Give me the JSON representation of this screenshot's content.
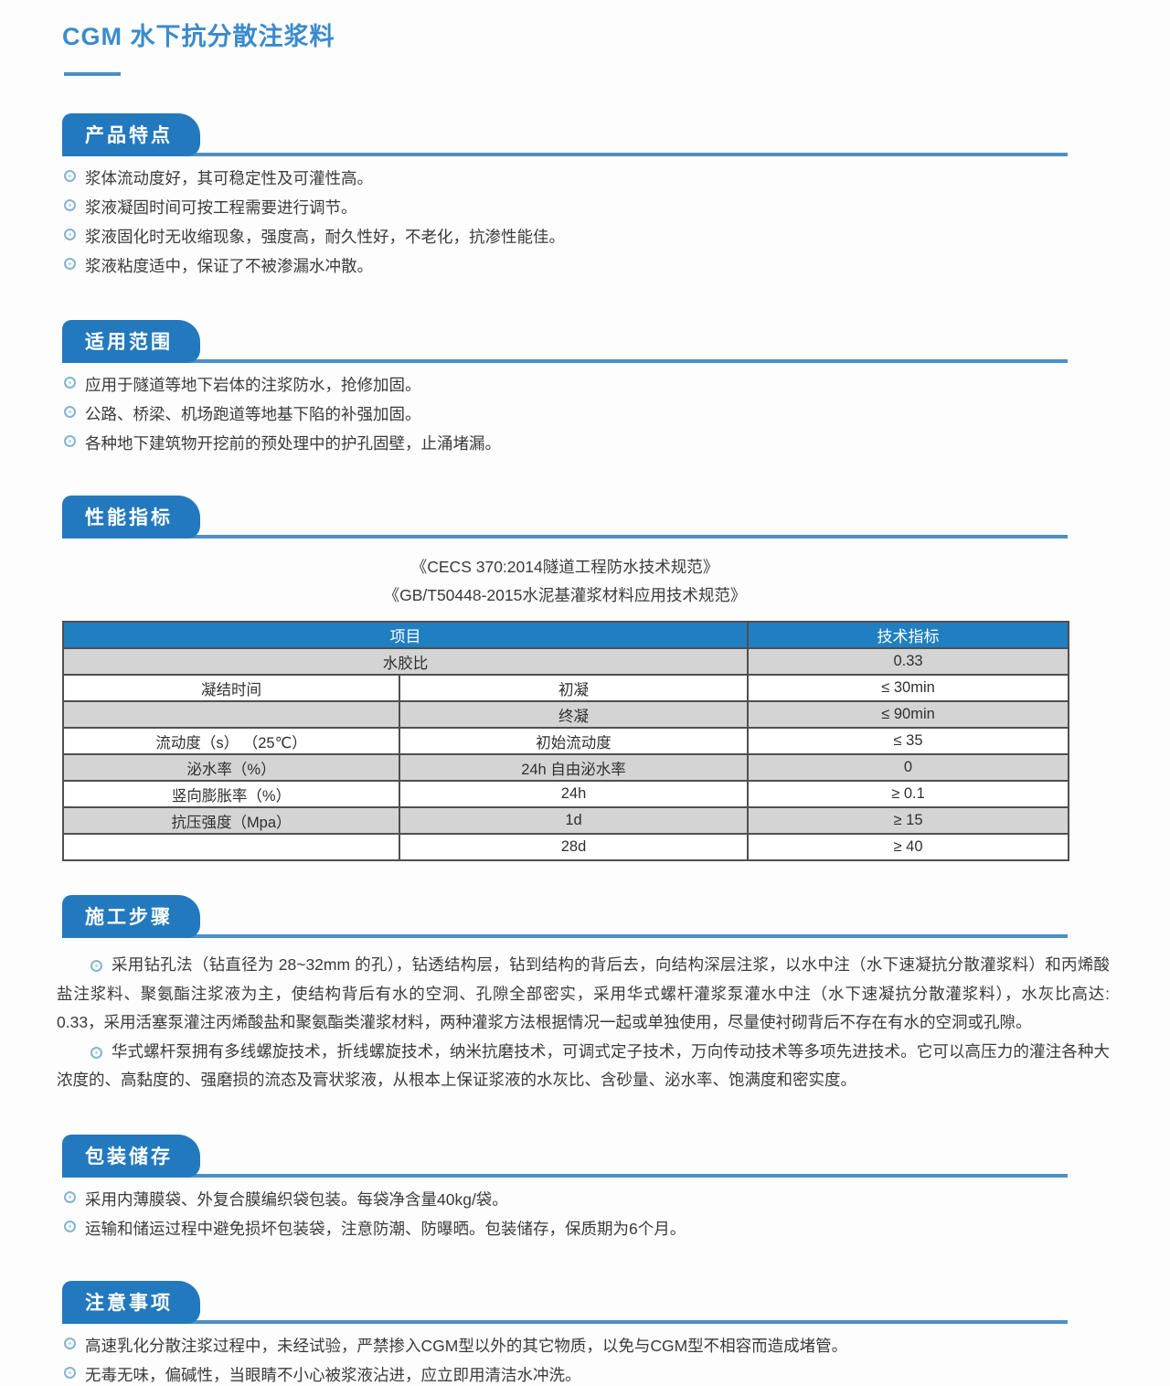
{
  "colors": {
    "accent_blue": "#2379bd",
    "rule_blue": "#4a90c7",
    "table_header_blue": "#1f7fc0",
    "row_alt_gray": "#d4d4d4",
    "border_gray": "#4f4f4f",
    "title_blue": "#3a8bcd",
    "bullet_ring_blue": "#85b5d2"
  },
  "page": {
    "title": "CGM 水下抗分散注浆料"
  },
  "sections": {
    "features": {
      "heading": "产品特点",
      "items": [
        "浆体流动度好，其可稳定性及可灌性高。",
        "浆液凝固时间可按工程需要进行调节。",
        "浆液固化时无收缩现象，强度高，耐久性好，不老化，抗渗性能佳。",
        "浆液粘度适中，保证了不被渗漏水冲散。"
      ]
    },
    "scope": {
      "heading": "适用范围",
      "items": [
        "应用于隧道等地下岩体的注浆防水，抢修加固。",
        "公路、桥梁、机场跑道等地基下陷的补强加固。",
        "各种地下建筑物开挖前的预处理中的护孔固壁，止涌堵漏。"
      ]
    },
    "performance": {
      "heading": "性能指标",
      "standards": [
        "《CECS 370:2014隧道工程防水技术规范》",
        "《GB/T50448-2015水泥基灌浆材料应用技术规范》"
      ],
      "table": {
        "col_headers": [
          "项目",
          "技术指标"
        ],
        "rows": [
          {
            "col1": "水胶比",
            "col2": "",
            "value": "0.33"
          },
          {
            "col1": "凝结时间",
            "col2": "初凝",
            "value": "≤ 30min"
          },
          {
            "col1": "",
            "col2": "终凝",
            "value": "≤ 90min"
          },
          {
            "col1": "流动度（s） （25℃）",
            "col2": "初始流动度",
            "value": "≤ 35"
          },
          {
            "col1": "泌水率（%）",
            "col2": "24h 自由泌水率",
            "value": "0"
          },
          {
            "col1": "竖向膨胀率（%）",
            "col2": "24h",
            "value": "≥ 0.1"
          },
          {
            "col1": "抗压强度（Mpa）",
            "col2": "1d",
            "value": "≥ 15"
          },
          {
            "col1": "",
            "col2": "28d",
            "value": "≥ 40"
          }
        ]
      }
    },
    "construction": {
      "heading": "施工步骤",
      "paragraphs": [
        "采用钻孔法（钻直径为 28~32mm 的孔），钻透结构层，钻到结构的背后去，向结构深层注浆，以水中注（水下速凝抗分散灌浆料）和丙烯酸盐注浆料、聚氨酯注浆液为主，使结构背后有水的空洞、孔隙全部密实，采用华式螺杆灌浆泵灌水中注（水下速凝抗分散灌浆料），水灰比高达: 0.33，采用活塞泵灌注丙烯酸盐和聚氨酯类灌浆材料，两种灌浆方法根据情况一起或单独使用，尽量使衬砌背后不存在有水的空洞或孔隙。",
        "华式螺杆泵拥有多线螺旋技术，折线螺旋技术，纳米抗磨技术，可调式定子技术，万向传动技术等多项先进技术。它可以高压力的灌注各种大浓度的、高黏度的、强磨损的流态及膏状浆液，从根本上保证浆液的水灰比、含砂量、泌水率、饱满度和密实度。"
      ]
    },
    "packaging": {
      "heading": "包装储存",
      "items": [
        "采用内薄膜袋、外复合膜编织袋包装。每袋净含量40kg/袋。",
        "运输和储运过程中避免损坏包装袋，注意防潮、防曝晒。包装储存，保质期为6个月。"
      ]
    },
    "notes": {
      "heading": "注意事项",
      "items": [
        "高速乳化分散注浆过程中，未经试验，严禁掺入CGM型以外的其它物质，以免与CGM型不相容而造成堵管。",
        "无毒无味，偏碱性，当眼睛不小心被浆液沾进，应立即用清洁水冲洗。"
      ]
    }
  }
}
